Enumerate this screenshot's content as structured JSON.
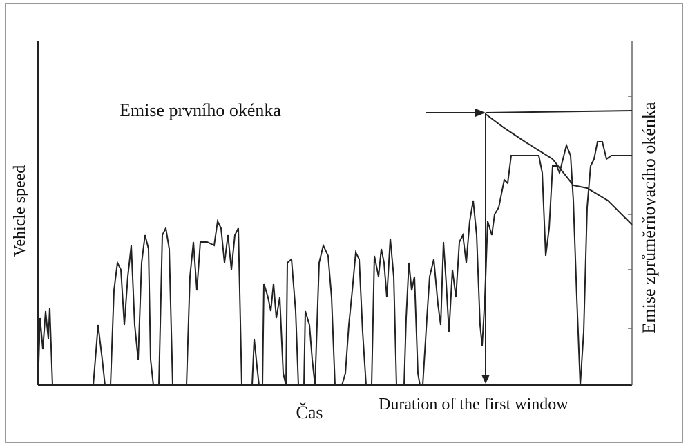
{
  "labels": {
    "window_emission": "Emise prvního okénka",
    "y_axis": "Vehicle speed",
    "x_axis": "Čas",
    "duration": "Duration of the first window",
    "y2_axis": "Emise zprůměrňovacího okénka"
  }
}
